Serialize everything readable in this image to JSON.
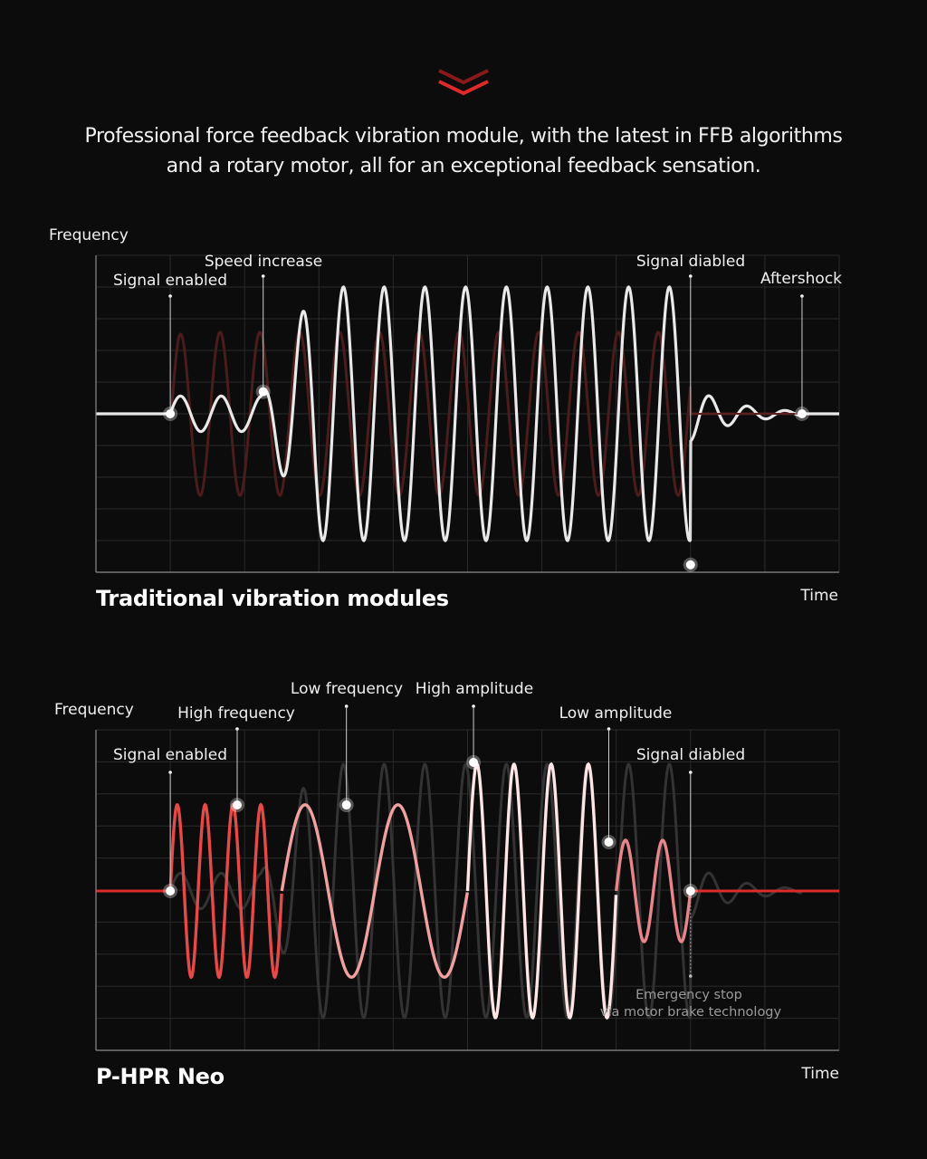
{
  "intro": {
    "line1": "Professional force feedback vibration module, with the latest in FFB algorithms",
    "line2": "and a rotary motor, all for an exceptional feedback sensation."
  },
  "colors": {
    "background": "#0c0c0d",
    "accent_red": "#e02a2a",
    "dark_red_trace": "#4a1c1c",
    "grid": "#2e2e2e",
    "axis": "#8a8a8a"
  },
  "chart_data": [
    {
      "type": "line",
      "title": "Traditional vibration modules",
      "ylabel": "Frequency",
      "xlabel": "Time",
      "grid": true,
      "annotations": [
        {
          "label": "Signal enabled",
          "x": 0.1
        },
        {
          "label": "Speed increase",
          "x": 0.225
        },
        {
          "label": "Signal diabled",
          "x": 0.8
        },
        {
          "label": "Aftershock",
          "x": 0.95
        }
      ],
      "series": [
        {
          "role": "input signal (background)",
          "color": "#4a1c1c",
          "start": 0.1,
          "end": 0.8,
          "amplitude": 0.65,
          "cycles": 12
        },
        {
          "role": "module response",
          "color": "#ffffff",
          "start": 0.1,
          "end": 0.8,
          "peak_amplitude": 1.0,
          "cycles": 12.5,
          "aftershock_cycles": 3,
          "aftershock_end": 0.95
        }
      ]
    },
    {
      "type": "line",
      "title": "P-HPR Neo",
      "ylabel": "Frequency",
      "xlabel": "Time",
      "grid": true,
      "annotations": [
        {
          "label": "Signal enabled",
          "x": 0.1
        },
        {
          "label": "High frequency",
          "x": 0.19
        },
        {
          "label": "Low frequency",
          "x": 0.337
        },
        {
          "label": "High amplitude",
          "x": 0.508
        },
        {
          "label": "Low amplitude",
          "x": 0.69
        },
        {
          "label": "Signal diabled",
          "x": 0.8
        }
      ],
      "note": {
        "line1": "Emergency stop",
        "line2": "via motor brake technology",
        "x": 0.8
      },
      "series": [
        {
          "role": "traditional response (background)",
          "color": "#2e2e2e"
        },
        {
          "role": "high frequency segment",
          "color": "#e64a48",
          "start": 0.1,
          "end": 0.25,
          "amplitude": 0.68,
          "cycles": 4
        },
        {
          "role": "low frequency segment",
          "color": "#f1a0a0",
          "start": 0.25,
          "end": 0.5,
          "amplitude": 0.68,
          "cycles": 2
        },
        {
          "role": "high amplitude segment",
          "color": "#ffe6e6",
          "start": 0.5,
          "end": 0.7,
          "amplitude": 1.0,
          "cycles": 4
        },
        {
          "role": "low amplitude segment",
          "color": "#e8858a",
          "start": 0.7,
          "end": 0.8,
          "amplitude": 0.4,
          "cycles": 2
        }
      ]
    }
  ]
}
